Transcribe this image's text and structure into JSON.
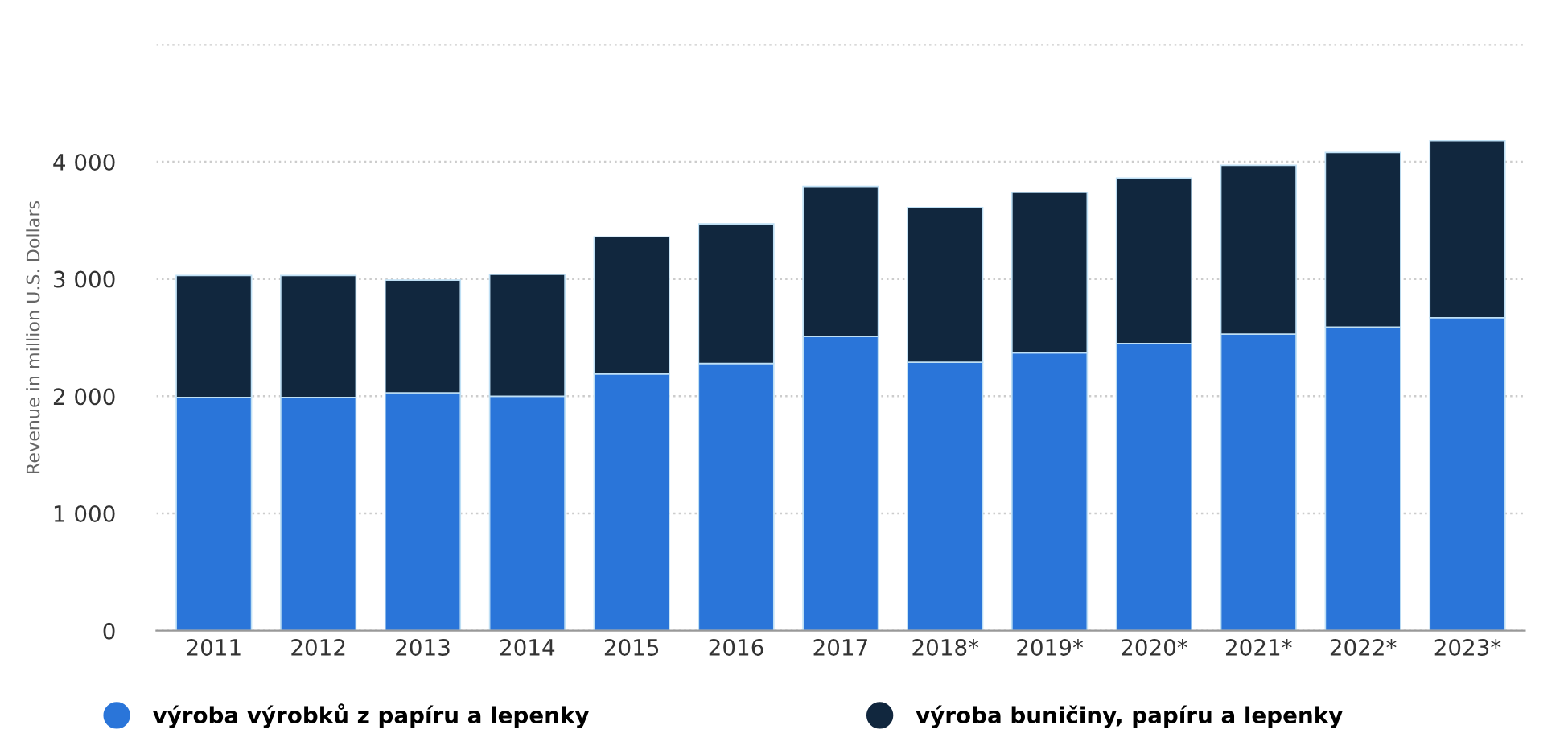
{
  "chart_data": {
    "type": "bar",
    "stacked": true,
    "ylabel": "Revenue in million U.S. Dollars",
    "categories": [
      "2011",
      "2012",
      "2013",
      "2014",
      "2015",
      "2016",
      "2017",
      "2018*",
      "2019*",
      "2020*",
      "2021*",
      "2022*",
      "2023*"
    ],
    "series": [
      {
        "name": "výroba výrobků z papíru a lepenky",
        "color": "#2a75d9",
        "values": [
          1990,
          1990,
          2030,
          2000,
          2190,
          2280,
          2510,
          2290,
          2370,
          2450,
          2530,
          2590,
          2670
        ]
      },
      {
        "name": "výroba buničiny, papíru a lepenky",
        "color": "#11273e",
        "values": [
          1040,
          1040,
          960,
          1040,
          1170,
          1190,
          1280,
          1320,
          1370,
          1410,
          1440,
          1490,
          1510
        ]
      }
    ],
    "ylim": [
      0,
      5000
    ],
    "yticks": [
      {
        "value": 0,
        "label": "0"
      },
      {
        "value": 1000,
        "label": "1 000"
      },
      {
        "value": 2000,
        "label": "2 000"
      },
      {
        "value": 3000,
        "label": "3 000"
      },
      {
        "value": 4000,
        "label": "4 000"
      },
      {
        "value": 5000,
        "label": null
      }
    ],
    "grid": "y",
    "legend": "bottom"
  }
}
